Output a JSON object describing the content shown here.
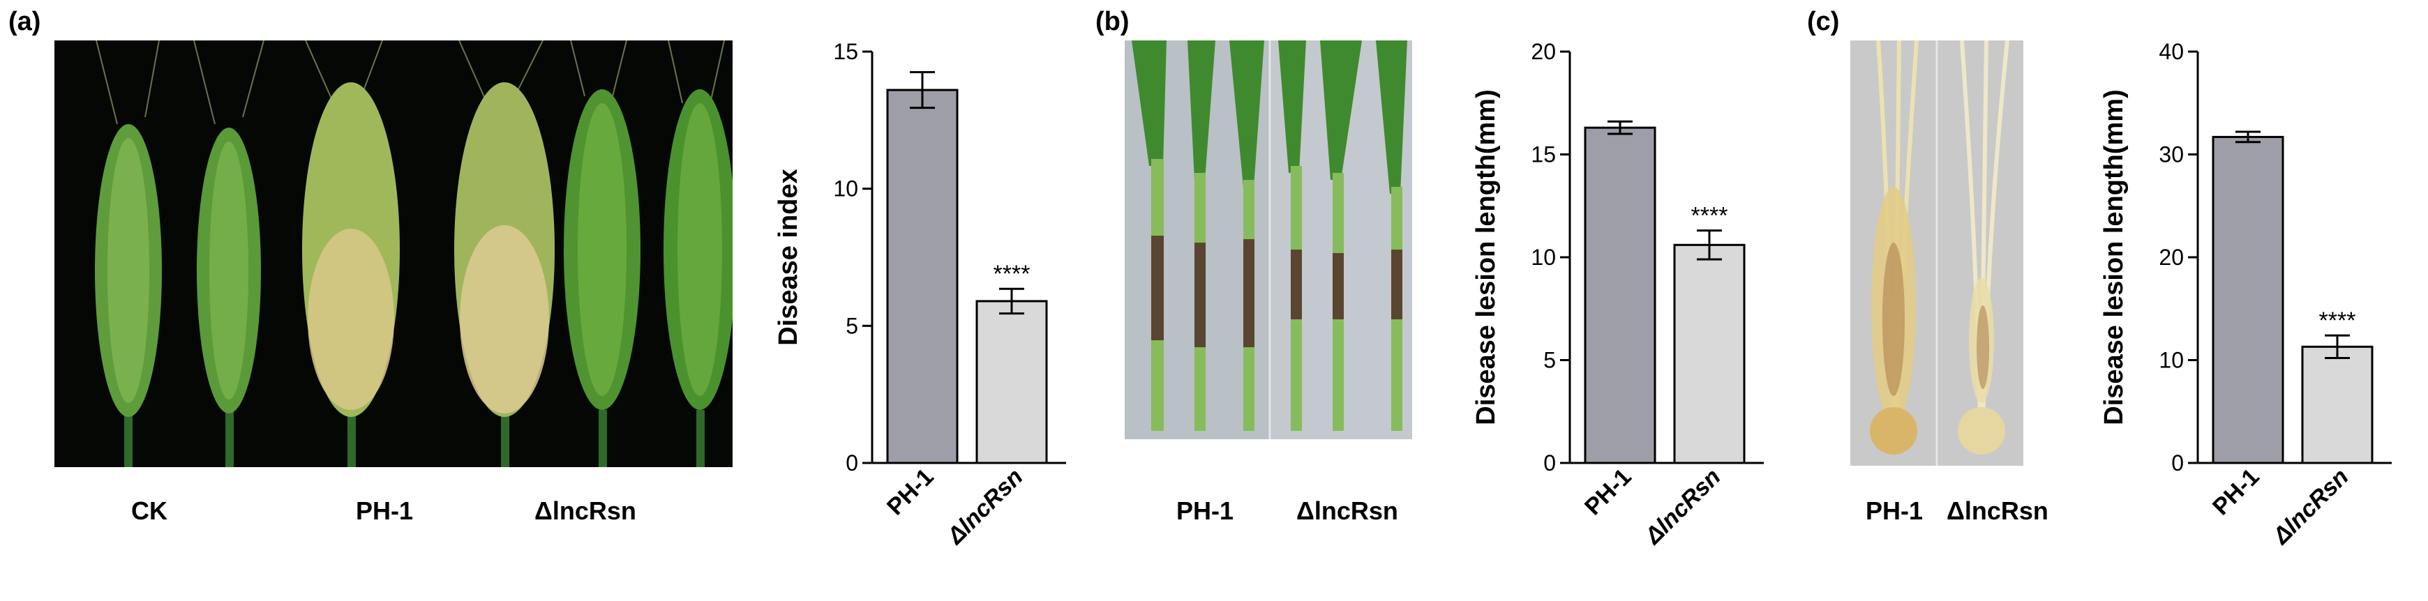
{
  "panels": {
    "a": {
      "letter": "(a)",
      "photo_labels": [
        "CK",
        "PH-1",
        "ΔlncRsn"
      ],
      "photo_subject": "wheat-spikes-photo"
    },
    "b": {
      "letter": "(b)",
      "photo_labels": [
        "PH-1",
        "ΔlncRsn"
      ],
      "photo_subject": "wheat-coleoptiles-photo"
    },
    "c": {
      "letter": "(c)",
      "photo_labels": [
        "PH-1",
        "ΔlncRsn"
      ],
      "photo_subject": "wheat-roots-photo"
    }
  },
  "colors": {
    "bar_ph1": "#9e9ea8",
    "bar_mutant": "#d9d9d9",
    "outline": "#000000"
  },
  "chart_data": [
    {
      "type": "bar",
      "panel": "a",
      "title": "",
      "xlabel": "",
      "ylabel": "Disease index",
      "ylim": [
        0,
        15
      ],
      "yticks": [
        0,
        5,
        10,
        15
      ],
      "categories": [
        "PH-1",
        "ΔlncRsn"
      ],
      "values": [
        13.6,
        5.9
      ],
      "errors": [
        0.65,
        0.45
      ],
      "significance": [
        "",
        "****"
      ],
      "grid": false,
      "legend": "none"
    },
    {
      "type": "bar",
      "panel": "b",
      "title": "",
      "xlabel": "",
      "ylabel": "Disease  lesion length(mm)",
      "ylim": [
        0,
        20
      ],
      "yticks": [
        0,
        5,
        10,
        15,
        20
      ],
      "categories": [
        "PH-1",
        "ΔlncRsn"
      ],
      "values": [
        16.3,
        10.6
      ],
      "errors": [
        0.3,
        0.7
      ],
      "significance": [
        "",
        "****"
      ],
      "grid": false,
      "legend": "none"
    },
    {
      "type": "bar",
      "panel": "c",
      "title": "",
      "xlabel": "",
      "ylabel": "Disease  lesion length(mm)",
      "ylim": [
        0,
        40
      ],
      "yticks": [
        0,
        10,
        20,
        30,
        40
      ],
      "categories": [
        "PH-1",
        "ΔlncRsn"
      ],
      "values": [
        31.7,
        11.3
      ],
      "errors": [
        0.5,
        1.1
      ],
      "significance": [
        "",
        "****"
      ],
      "grid": false,
      "legend": "none"
    }
  ]
}
